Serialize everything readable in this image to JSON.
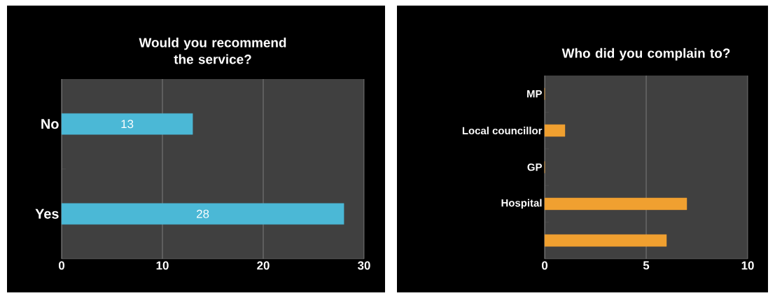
{
  "chart_data": [
    {
      "type": "bar",
      "orientation": "horizontal",
      "title": "Would you recommend the service?",
      "categories": [
        "No",
        "Yes"
      ],
      "values": [
        13,
        28
      ],
      "value_labels": [
        "13",
        "28"
      ],
      "color": "#4bb8d6",
      "xlim": [
        0,
        30
      ],
      "xticks": [
        0,
        10,
        20,
        30
      ],
      "grid": "x"
    },
    {
      "type": "bar",
      "orientation": "horizontal",
      "title": "Who did you complain to?",
      "categories": [
        "MP",
        "Local councillor",
        "GP",
        "Hospital",
        null
      ],
      "values": [
        0,
        1,
        0,
        7,
        6
      ],
      "color": "#f0a030",
      "xlim": [
        0,
        10
      ],
      "xticks": [
        0,
        5,
        10
      ],
      "grid": "x"
    }
  ]
}
